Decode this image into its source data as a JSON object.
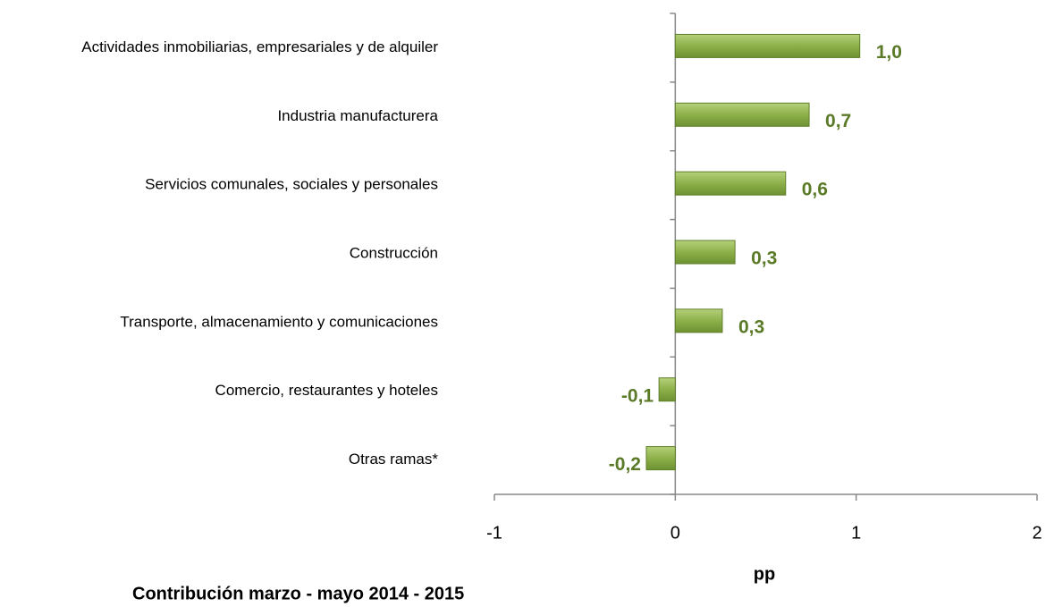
{
  "chart_data": {
    "type": "bar",
    "orientation": "horizontal",
    "title": "Contribución marzo - mayo 2014 - 2015",
    "x_label": "pp",
    "categories": [
      "Actividades inmobiliarias, empresariales y de alquiler",
      "Industria manufacturera",
      "Servicios comunales, sociales y personales",
      "Construcción",
      "Transporte, almacenamiento y comunicaciones",
      "Comercio, restaurantes y hoteles",
      "Otras ramas*"
    ],
    "values": [
      1.02,
      0.74,
      0.61,
      0.33,
      0.26,
      -0.09,
      -0.16
    ],
    "value_labels": [
      "1,0",
      "0,7",
      "0,6",
      "0,3",
      "0,3",
      "-0,1",
      "-0,2"
    ],
    "color": "#8db04a",
    "label_color": "#5b7a28",
    "xlim": [
      -1,
      2
    ],
    "xticks": [
      -1,
      0,
      1,
      2
    ],
    "grid": false
  }
}
